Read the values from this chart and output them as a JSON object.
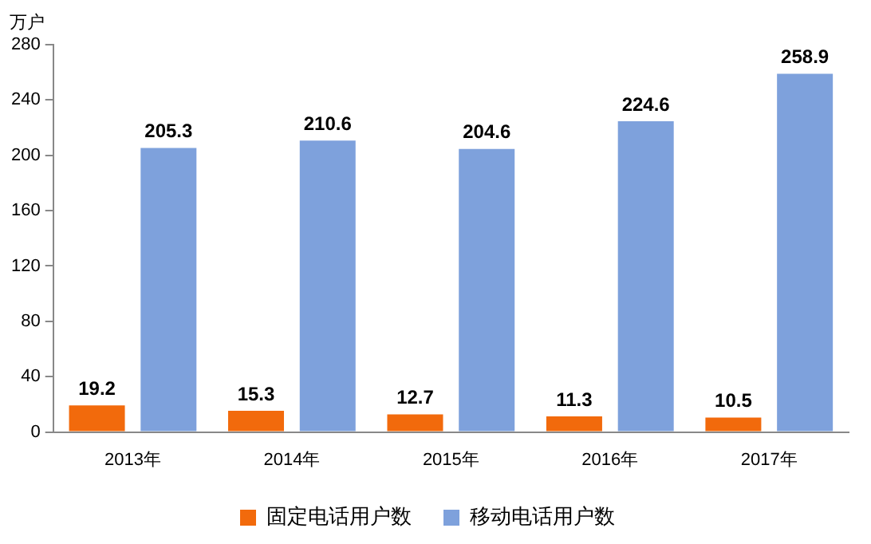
{
  "chart_data": {
    "type": "bar",
    "ylabel": "万户",
    "categories": [
      "2013年",
      "2014年",
      "2015年",
      "2016年",
      "2017年"
    ],
    "series": [
      {
        "name": "固定电话用户数",
        "color": "#f26a0c",
        "values": [
          19.2,
          15.3,
          12.7,
          11.3,
          10.5
        ]
      },
      {
        "name": "移动电话用户数",
        "color": "#7ea1dc",
        "values": [
          205.3,
          210.6,
          204.6,
          224.6,
          258.9
        ]
      }
    ],
    "ylim": [
      0,
      280
    ],
    "yticks": [
      0,
      40,
      80,
      120,
      160,
      200,
      240,
      280
    ],
    "grid": false,
    "legend": "bottom",
    "data_labels": true
  }
}
